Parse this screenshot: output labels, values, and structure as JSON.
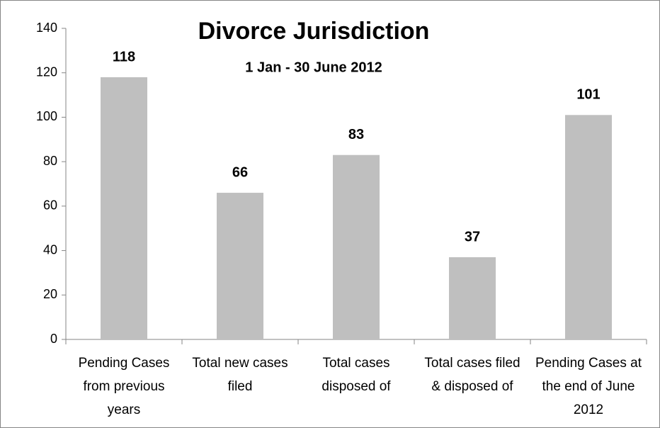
{
  "chart_data": {
    "type": "bar",
    "title": "Divorce Jurisdiction",
    "subtitle": "1 Jan - 30 June 2012",
    "categories": [
      "Pending Cases from previous years",
      "Total new cases filed",
      "Total cases disposed of",
      "Total cases filed & disposed of",
      "Pending Cases at the end of June 2012"
    ],
    "values": [
      118,
      66,
      83,
      37,
      101
    ],
    "color": "#bfbfbf",
    "ylim": [
      0,
      140
    ],
    "yticks": [
      0,
      20,
      40,
      60,
      80,
      100,
      120,
      140
    ],
    "grid": false
  }
}
